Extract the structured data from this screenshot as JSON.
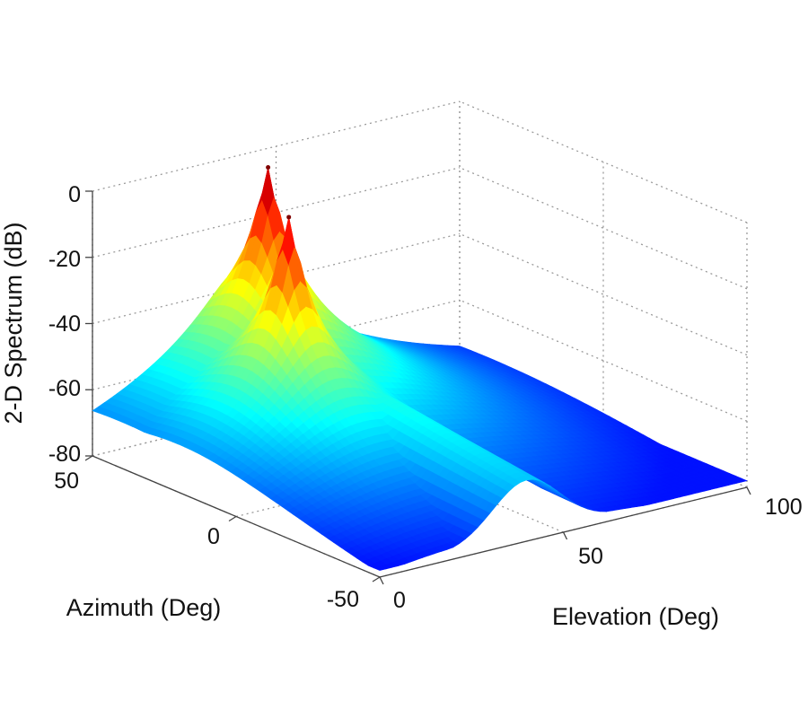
{
  "chart_data": {
    "type": "surface",
    "title": "",
    "zlabel": "2-D Spectrum (dB)",
    "xlabel": "Elevation (Deg)",
    "ylabel": "Azimuth (Deg)",
    "xlim": [
      0,
      100
    ],
    "ylim": [
      -50,
      50
    ],
    "zlim": [
      -80,
      0
    ],
    "x_ticks": [
      "0",
      "50",
      "100"
    ],
    "y_ticks": [
      "-50",
      "0",
      "50"
    ],
    "z_ticks": [
      "0",
      "-20",
      "-40",
      "-60",
      "-80"
    ],
    "grid": true,
    "colormap": "jet",
    "floor_db": -78,
    "peaks": [
      {
        "elevation": 30,
        "azimuth": 20,
        "value_db": -5
      },
      {
        "elevation": 40,
        "azimuth": 40,
        "value_db": 0
      }
    ],
    "ridge": {
      "elevation": 40,
      "peak_db": -48
    }
  }
}
